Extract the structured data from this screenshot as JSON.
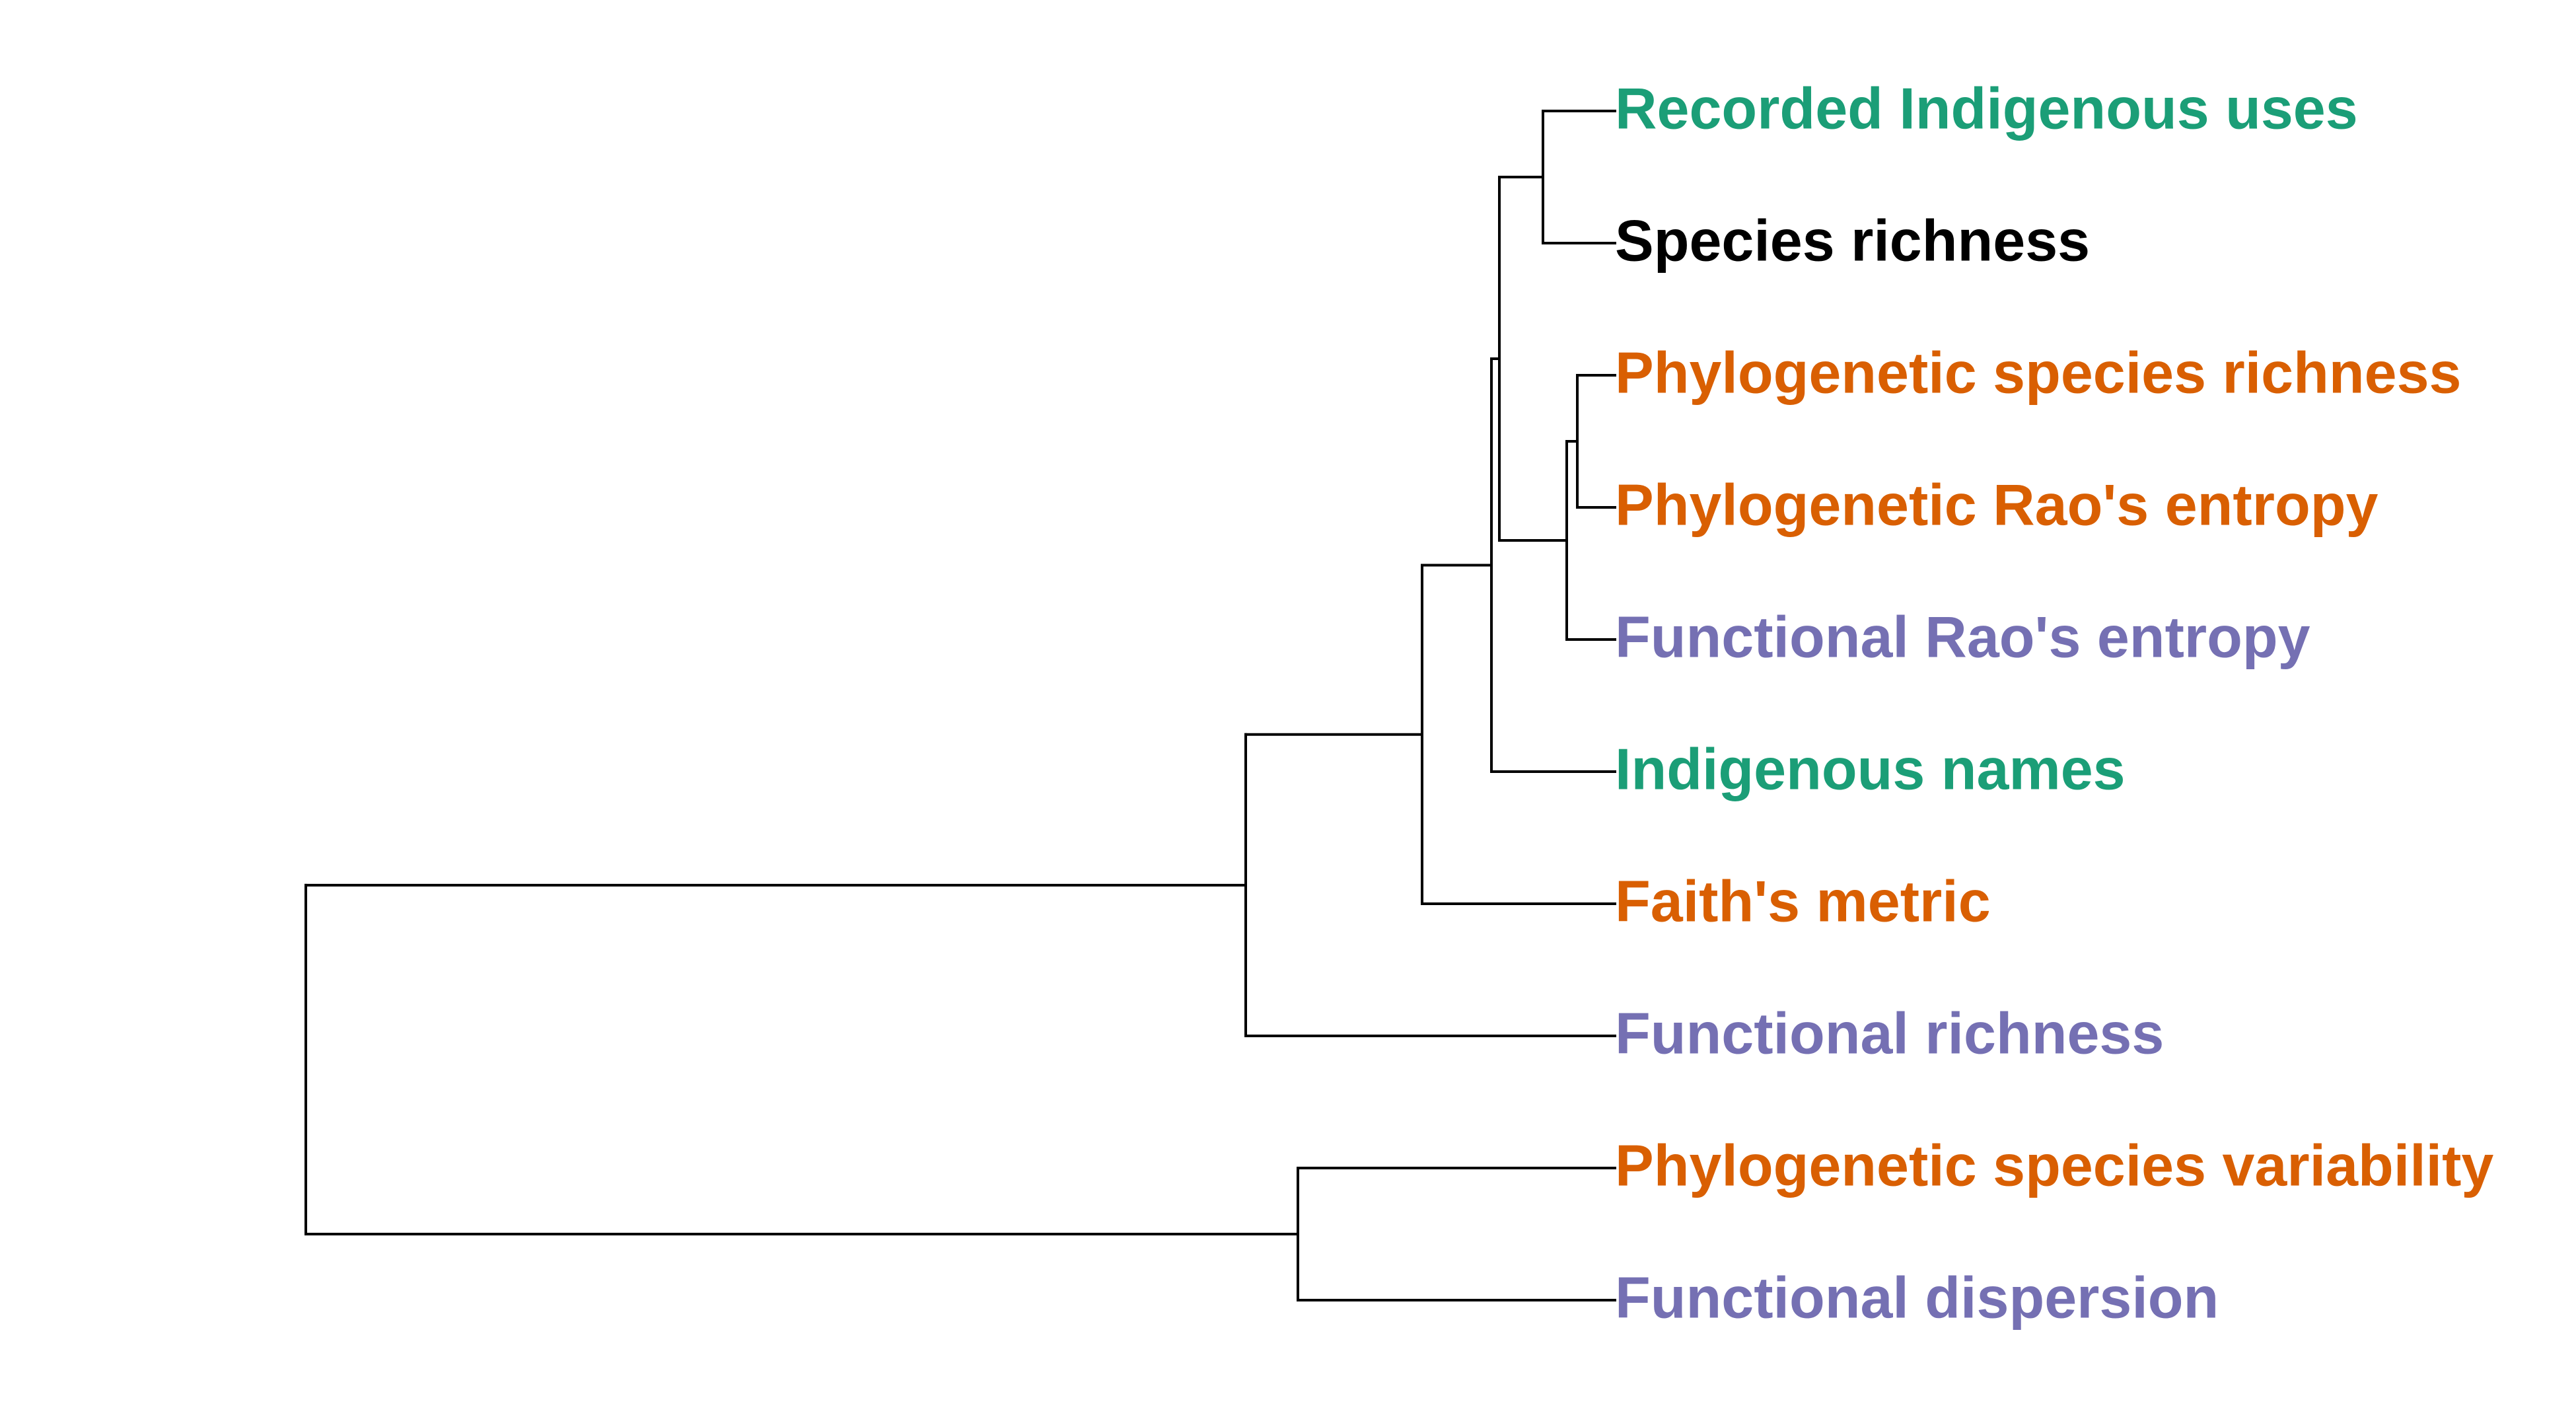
{
  "colors": {
    "indigenous": "#1b9e77",
    "taxonomic": "#000000",
    "phylogenetic": "#d95f02",
    "functional": "#7570b3"
  },
  "leaves": [
    {
      "id": "recorded-indigenous-uses",
      "label": "Recorded Indigenous uses",
      "group": "indigenous"
    },
    {
      "id": "species-richness",
      "label": "Species richness",
      "group": "taxonomic"
    },
    {
      "id": "phylogenetic-species-richness",
      "label": "Phylogenetic species richness",
      "group": "phylogenetic"
    },
    {
      "id": "phylogenetic-raos-entropy",
      "label": "Phylogenetic Rao's entropy",
      "group": "phylogenetic"
    },
    {
      "id": "functional-raos-entropy",
      "label": "Functional Rao's entropy",
      "group": "functional"
    },
    {
      "id": "indigenous-names",
      "label": "Indigenous names",
      "group": "indigenous"
    },
    {
      "id": "faiths-metric",
      "label": "Faith's metric",
      "group": "phylogenetic"
    },
    {
      "id": "functional-richness",
      "label": "Functional richness",
      "group": "functional"
    },
    {
      "id": "phylogenetic-species-variability",
      "label": "Phylogenetic species variability",
      "group": "phylogenetic"
    },
    {
      "id": "functional-dispersion",
      "label": "Functional dispersion",
      "group": "functional"
    }
  ],
  "tree": {
    "children": [
      {
        "children": [
          {
            "children": [
              {
                "children": [
                  {
                    "children": [
                      {
                        "children": [
                          {
                            "leaf": 0
                          },
                          {
                            "leaf": 1
                          }
                        ]
                      },
                      {
                        "children": [
                          {
                            "children": [
                              {
                                "leaf": 2
                              },
                              {
                                "leaf": 3
                              }
                            ]
                          },
                          {
                            "leaf": 4
                          }
                        ]
                      }
                    ]
                  },
                  {
                    "leaf": 5
                  }
                ]
              },
              {
                "leaf": 6
              }
            ]
          },
          {
            "leaf": 7
          }
        ]
      },
      {
        "children": [
          {
            "leaf": 8
          },
          {
            "leaf": 9
          }
        ]
      }
    ]
  }
}
